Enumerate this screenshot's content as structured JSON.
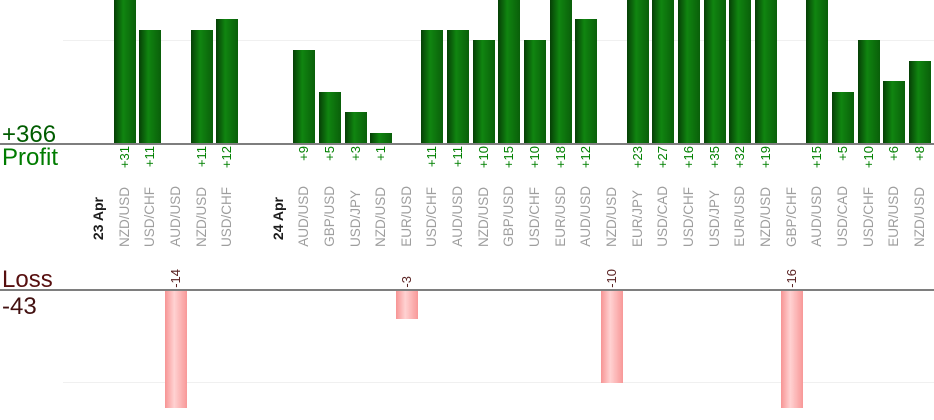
{
  "chart_data": {
    "type": "bar",
    "profit_axis": {
      "title": "Profit",
      "total_label": "+366",
      "total": 366,
      "baseline_value": 0,
      "gridline_value": 10
    },
    "loss_axis": {
      "title": "Loss",
      "total_label": "-43",
      "total": -43,
      "baseline_value": 0,
      "gridline_value": -10
    },
    "columns": [
      {
        "kind": "date",
        "label": "23 Apr"
      },
      {
        "kind": "pair",
        "label": "NZD/USD",
        "profit": 31,
        "profit_label": "+31"
      },
      {
        "kind": "pair",
        "label": "USD/CHF",
        "profit": 11,
        "profit_label": "+11"
      },
      {
        "kind": "pair",
        "label": "AUD/USD",
        "loss": -14,
        "loss_label": "-14"
      },
      {
        "kind": "pair",
        "label": "NZD/USD",
        "profit": 11,
        "profit_label": "+11"
      },
      {
        "kind": "pair",
        "label": "USD/CHF",
        "profit": 12,
        "profit_label": "+12"
      },
      {
        "kind": "gap",
        "label": ""
      },
      {
        "kind": "date",
        "label": "24 Apr"
      },
      {
        "kind": "pair",
        "label": "AUD/USD",
        "profit": 9,
        "profit_label": "+9"
      },
      {
        "kind": "pair",
        "label": "GBP/USD",
        "profit": 5,
        "profit_label": "+5"
      },
      {
        "kind": "pair",
        "label": "USD/JPY",
        "profit": 3,
        "profit_label": "+3"
      },
      {
        "kind": "pair",
        "label": "NZD/USD",
        "profit": 1,
        "profit_label": "+1"
      },
      {
        "kind": "pair",
        "label": "EUR/USD",
        "loss": -3,
        "loss_label": "-3"
      },
      {
        "kind": "pair",
        "label": "USD/CHF",
        "profit": 11,
        "profit_label": "+11"
      },
      {
        "kind": "pair",
        "label": "AUD/USD",
        "profit": 11,
        "profit_label": "+11"
      },
      {
        "kind": "pair",
        "label": "NZD/USD",
        "profit": 10,
        "profit_label": "+10"
      },
      {
        "kind": "pair",
        "label": "GBP/USD",
        "profit": 15,
        "profit_label": "+15"
      },
      {
        "kind": "pair",
        "label": "USD/CHF",
        "profit": 10,
        "profit_label": "+10"
      },
      {
        "kind": "pair",
        "label": "EUR/USD",
        "profit": 18,
        "profit_label": "+18"
      },
      {
        "kind": "pair",
        "label": "AUD/USD",
        "profit": 12,
        "profit_label": "+12"
      },
      {
        "kind": "pair",
        "label": "NZD/USD",
        "loss": -10,
        "loss_label": "-10"
      },
      {
        "kind": "pair",
        "label": "EUR/JPY",
        "profit": 23,
        "profit_label": "+23"
      },
      {
        "kind": "pair",
        "label": "USD/CAD",
        "profit": 27,
        "profit_label": "+27"
      },
      {
        "kind": "pair",
        "label": "USD/CHF",
        "profit": 16,
        "profit_label": "+16"
      },
      {
        "kind": "pair",
        "label": "USD/JPY",
        "profit": 35,
        "profit_label": "+35"
      },
      {
        "kind": "pair",
        "label": "EUR/USD",
        "profit": 32,
        "profit_label": "+32"
      },
      {
        "kind": "pair",
        "label": "NZD/USD",
        "profit": 19,
        "profit_label": "+19"
      },
      {
        "kind": "pair",
        "label": "GBP/CHF",
        "loss": -16,
        "loss_label": "-16"
      },
      {
        "kind": "pair",
        "label": "AUD/USD",
        "profit": 15,
        "profit_label": "+15"
      },
      {
        "kind": "pair",
        "label": "USD/CAD",
        "profit": 5,
        "profit_label": "+5"
      },
      {
        "kind": "pair",
        "label": "USD/CHF",
        "profit": 10,
        "profit_label": "+10"
      },
      {
        "kind": "pair",
        "label": "EUR/USD",
        "profit": 6,
        "profit_label": "+6"
      },
      {
        "kind": "pair",
        "label": "NZD/USD",
        "profit": 8,
        "profit_label": "+8"
      }
    ]
  },
  "colors": {
    "profit_bar_edge": "#063f06",
    "profit_bar_light": "#108510",
    "profit_bar_dark": "#0a5f0a",
    "loss_bar_edge": "#f79494",
    "loss_bar_light": "#ffd2d2",
    "loss_bar_dark": "#f89898",
    "profit_value_text": "#008000",
    "loss_value_text": "#5a2323",
    "pair_text": "#9e9e9e",
    "date_text": "#1d1d1d",
    "profit_total_text": "#005c00",
    "profit_title_text": "#007c00",
    "loss_title_text": "#570f0f",
    "loss_total_text": "#431111",
    "axis_line": "#7e7e7e",
    "gridline": "#f0f0f0"
  }
}
